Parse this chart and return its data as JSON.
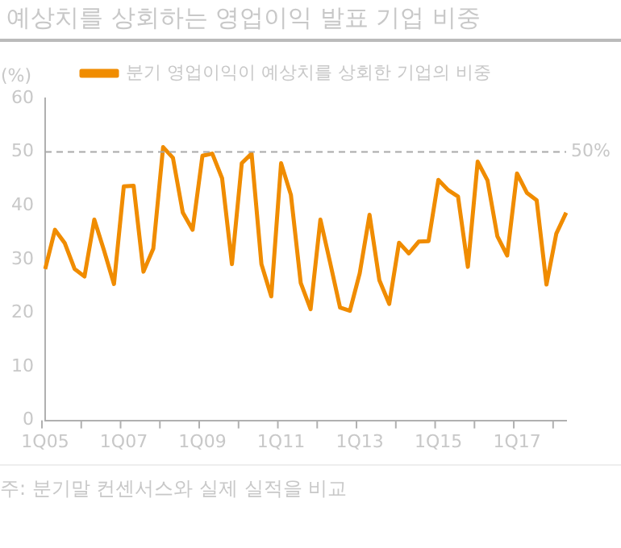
{
  "chart_data": {
    "type": "line",
    "title": "예상치를 상회하는 영업이익 발표 기업 비중",
    "ylabel": "(%)",
    "categories": [
      "1Q05",
      null,
      null,
      null,
      null,
      null,
      null,
      null,
      "1Q07",
      null,
      null,
      null,
      null,
      null,
      null,
      null,
      "1Q09",
      null,
      null,
      null,
      null,
      null,
      null,
      null,
      "1Q11",
      null,
      null,
      null,
      null,
      null,
      null,
      null,
      "1Q13",
      null,
      null,
      null,
      null,
      null,
      null,
      null,
      "1Q15",
      null,
      null,
      null,
      null,
      null,
      null,
      null,
      "1Q17",
      null,
      null,
      null,
      null,
      null
    ],
    "series": [
      {
        "name": "분기 영업이익이 예상치를 상회한 기업의 비중",
        "color": "#f08c00",
        "values": [
          28.2,
          35.5,
          33.0,
          28.2,
          26.8,
          37.4,
          31.6,
          25.4,
          43.6,
          43.7,
          27.7,
          32.0,
          50.9,
          48.9,
          38.7,
          35.5,
          49.3,
          49.7,
          45.1,
          29.1,
          47.9,
          49.7,
          29.1,
          23.1,
          47.9,
          42.0,
          25.6,
          20.7,
          37.4,
          29.3,
          21.0,
          20.4,
          27.4,
          38.3,
          26.1,
          21.7,
          33.1,
          31.1,
          33.3,
          33.4,
          44.8,
          42.9,
          41.7,
          28.6,
          48.2,
          44.7,
          34.3,
          30.7,
          46.0,
          42.4,
          41.0,
          25.3,
          34.8,
          38.7
        ]
      }
    ],
    "ylim": [
      0,
      60
    ],
    "yticks": [
      0,
      10,
      20,
      30,
      40,
      50,
      60
    ],
    "grid": false,
    "legend": "top",
    "marker": "none",
    "line_style": "solid",
    "ref_lines": [
      {
        "axis": "y",
        "value": 50,
        "label": "50%",
        "color": "#aaaaaa",
        "line_style": "dashed"
      }
    ],
    "annotations": [
      "주: 분기말 컨센서스와 실제 실적을 비교"
    ]
  }
}
